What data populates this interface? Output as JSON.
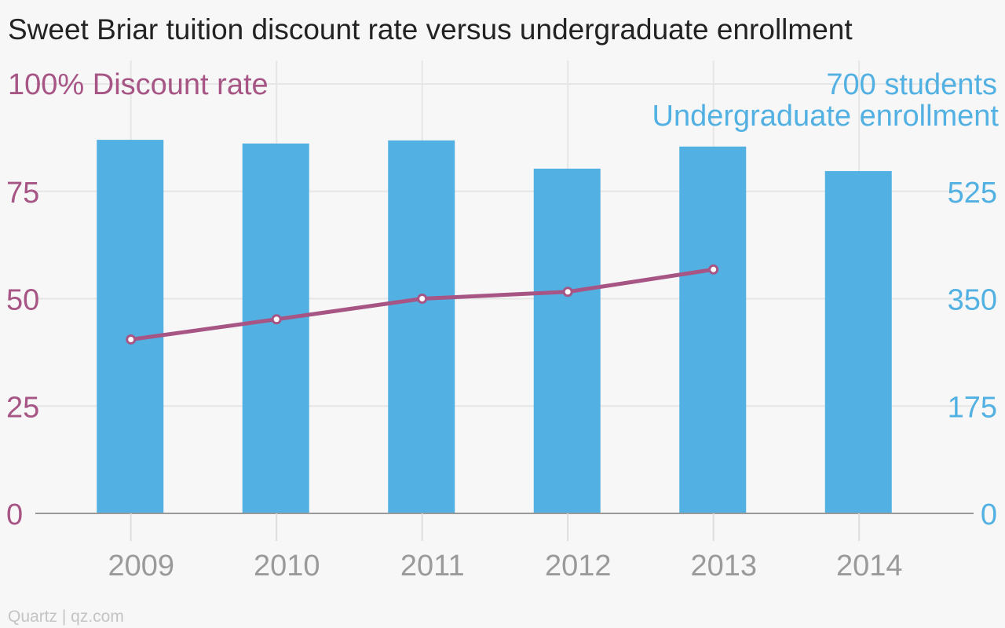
{
  "chart_data": {
    "type": "bar+line",
    "title": "Sweet Briar tuition discount rate versus undergraduate enrollment",
    "categories": [
      "2009",
      "2010",
      "2011",
      "2012",
      "2013",
      "2014"
    ],
    "bar_series": {
      "name": "Undergraduate enrollment",
      "axis": "right",
      "values": [
        609,
        603,
        608,
        562,
        598,
        558
      ]
    },
    "line_series": {
      "name": "Discount rate",
      "axis": "left",
      "values": [
        40.5,
        45.2,
        50.0,
        51.6,
        56.8,
        null
      ]
    },
    "left_axis": {
      "label": "Discount rate",
      "top_label": "100%",
      "ticks": [
        "0",
        "25",
        "50",
        "75"
      ],
      "ylim": [
        0,
        100
      ]
    },
    "right_axis": {
      "label": "Undergraduate enrollment",
      "top_label": "700 students",
      "ticks": [
        "0",
        "175",
        "350",
        "525"
      ],
      "ylim": [
        0,
        700
      ]
    },
    "grid": true,
    "source": "Quartz | qz.com",
    "colors": {
      "bar": "#52b1e2",
      "line": "#a65585",
      "left_axis_text": "#a65585",
      "right_axis_text": "#52b1e2",
      "grid": "#e6e6e6",
      "baseline": "#999999"
    }
  }
}
